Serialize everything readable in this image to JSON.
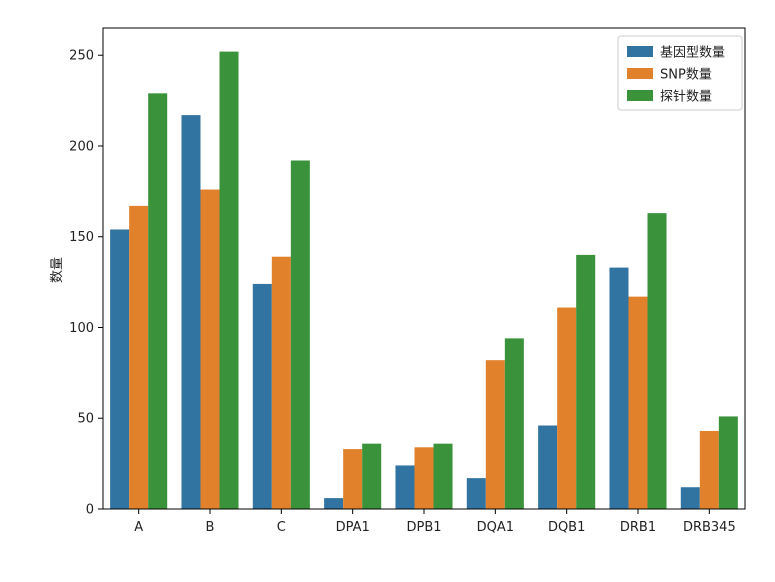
{
  "chart_data": {
    "type": "bar",
    "categories": [
      "A",
      "B",
      "C",
      "DPA1",
      "DPB1",
      "DQA1",
      "DQB1",
      "DRB1",
      "DRB345"
    ],
    "series": [
      {
        "name": "基因型数量",
        "color": "#3274a1",
        "values": [
          154,
          217,
          124,
          6,
          24,
          17,
          46,
          133,
          12
        ]
      },
      {
        "name": "SNP数量",
        "color": "#e1812c",
        "values": [
          167,
          176,
          139,
          33,
          34,
          82,
          111,
          117,
          43
        ]
      },
      {
        "name": "探针数量",
        "color": "#3a923a",
        "values": [
          229,
          252,
          192,
          36,
          36,
          94,
          140,
          163,
          51
        ]
      }
    ],
    "title": "",
    "xlabel": "",
    "ylabel": "数量",
    "ylim": [
      0,
      265
    ],
    "yticks": [
      0,
      50,
      100,
      150,
      200,
      250
    ],
    "grid": false,
    "legend_position": "top-right"
  }
}
